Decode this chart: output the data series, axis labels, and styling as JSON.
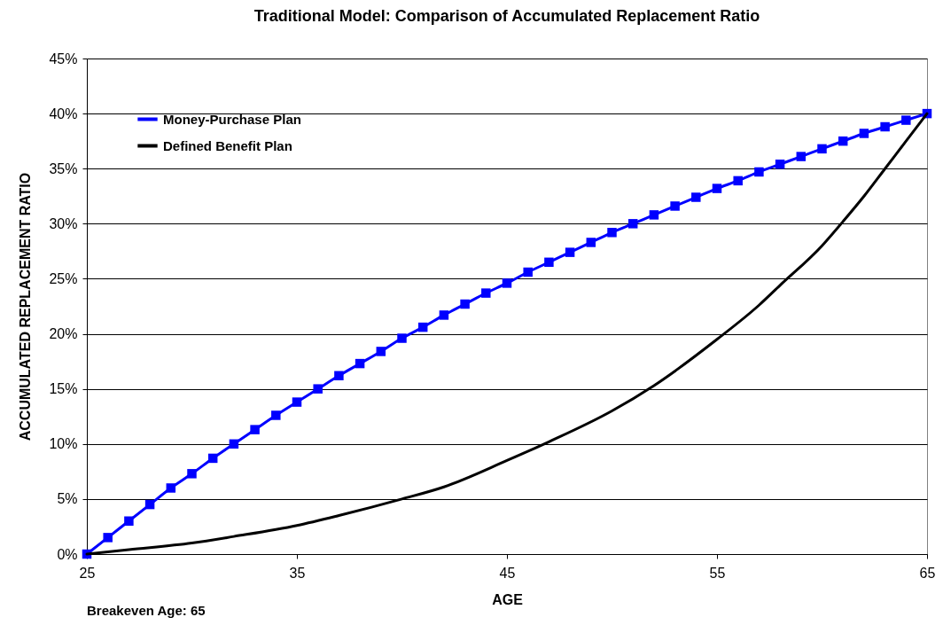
{
  "chart_data": {
    "type": "line",
    "title": "Traditional Model: Comparison of Accumulated Replacement Ratio",
    "xlabel": "AGE",
    "ylabel": "ACCUMULATED REPLACEMENT RATIO",
    "annotations": [
      "Breakeven Age: 65"
    ],
    "xlim": [
      25,
      65
    ],
    "xticks": [
      25,
      35,
      45,
      55,
      65
    ],
    "ylim": [
      0,
      45
    ],
    "yticks": [
      {
        "value": 0,
        "label": "0%"
      },
      {
        "value": 5,
        "label": "5%"
      },
      {
        "value": 10,
        "label": "10%"
      },
      {
        "value": 15,
        "label": "15%"
      },
      {
        "value": 20,
        "label": "20%"
      },
      {
        "value": 25,
        "label": "25%"
      },
      {
        "value": 30,
        "label": "30%"
      },
      {
        "value": 35,
        "label": "35%"
      },
      {
        "value": 40,
        "label": "40%"
      },
      {
        "value": 45,
        "label": "45%"
      }
    ],
    "grid": "y",
    "legend": "top left",
    "line_style": "solid",
    "series": [
      {
        "name": "Money-Purchase Plan",
        "color": "#0000ff",
        "marker": "square",
        "x": [
          25,
          26,
          27,
          28,
          29,
          30,
          31,
          32,
          33,
          34,
          35,
          36,
          37,
          38,
          39,
          40,
          41,
          42,
          43,
          44,
          45,
          46,
          47,
          48,
          49,
          50,
          51,
          52,
          53,
          54,
          55,
          56,
          57,
          58,
          59,
          60,
          61,
          62,
          63,
          64,
          65
        ],
        "values": [
          0,
          1.5,
          3.0,
          4.5,
          6.0,
          7.3,
          8.7,
          10.0,
          11.3,
          12.6,
          13.8,
          15.0,
          16.2,
          17.3,
          18.4,
          19.6,
          20.6,
          21.7,
          22.7,
          23.7,
          24.6,
          25.6,
          26.5,
          27.4,
          28.3,
          29.2,
          30.0,
          30.8,
          31.6,
          32.4,
          33.2,
          33.9,
          34.7,
          35.4,
          36.1,
          36.8,
          37.5,
          38.2,
          38.8,
          39.4,
          40.0
        ]
      },
      {
        "name": "Defined Benefit Plan",
        "color": "#000000",
        "marker": "none",
        "x": [
          25,
          27,
          30,
          32,
          35,
          37,
          40,
          42,
          45,
          47,
          50,
          52,
          55,
          57,
          58,
          60,
          61,
          62,
          63,
          64,
          65
        ],
        "values": [
          0,
          0.4,
          1.0,
          1.6,
          2.6,
          3.5,
          5.0,
          6.1,
          8.5,
          10.2,
          13.0,
          15.3,
          19.5,
          22.6,
          24.4,
          28.0,
          30.2,
          32.5,
          35.0,
          37.5,
          40.0
        ]
      }
    ]
  }
}
